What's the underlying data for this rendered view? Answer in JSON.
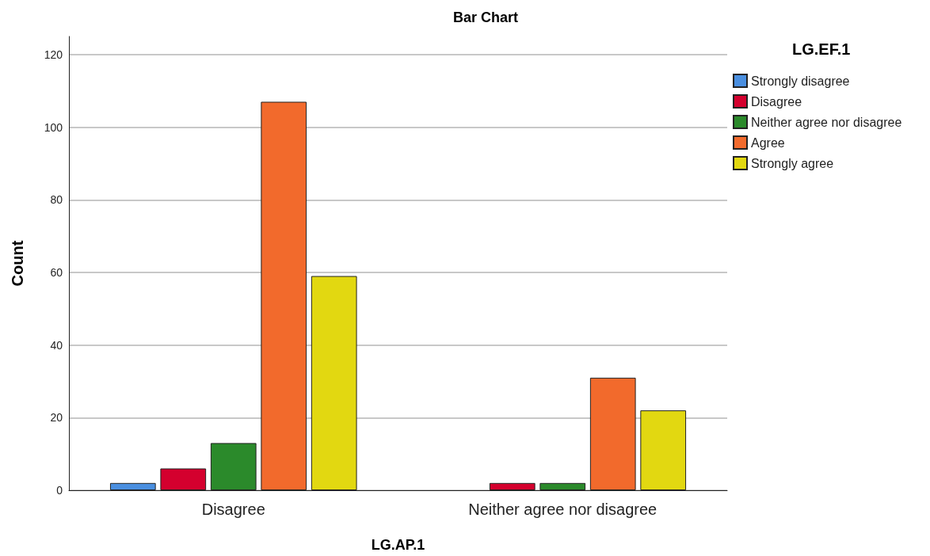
{
  "chart_data": {
    "type": "bar",
    "title": "Bar Chart",
    "xlabel": "LG.AP.1",
    "ylabel": "Count",
    "legend_title": "LG.EF.1",
    "categories": [
      "Disagree",
      "Neither agree nor disagree"
    ],
    "series": [
      {
        "name": "Strongly disagree",
        "color": "#4a8fe0",
        "values": [
          2,
          null
        ]
      },
      {
        "name": "Disagree",
        "color": "#d4002e",
        "values": [
          6,
          2
        ]
      },
      {
        "name": "Neither agree nor disagree",
        "color": "#2b8a2b",
        "values": [
          13,
          2
        ]
      },
      {
        "name": "Agree",
        "color": "#f26a2c",
        "values": [
          107,
          31
        ]
      },
      {
        "name": "Strongly agree",
        "color": "#e2d811",
        "values": [
          59,
          22
        ]
      }
    ],
    "ylim": [
      0,
      125
    ],
    "yticks": [
      0,
      20,
      40,
      60,
      80,
      100,
      120
    ],
    "grid": "y",
    "legend": "top right"
  }
}
